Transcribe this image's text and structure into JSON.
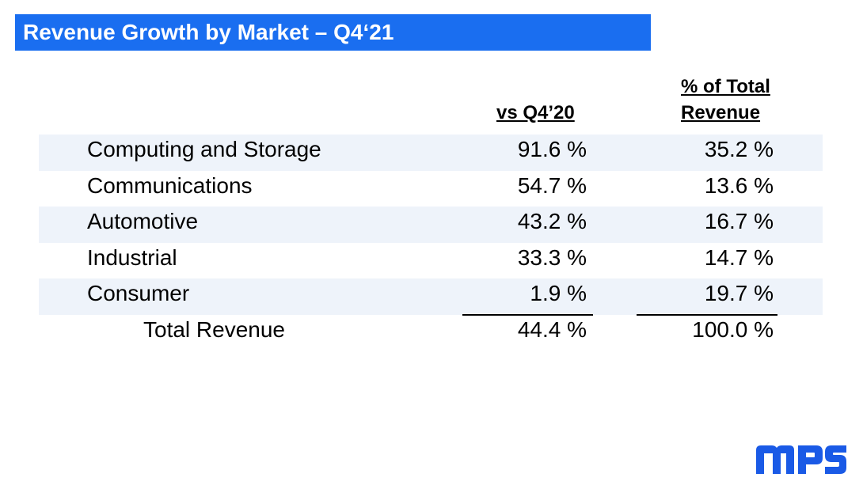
{
  "title": "Revenue Growth by Market –  Q4‘21",
  "columns": {
    "growth_header": "vs Q4’20",
    "share_header_line1": "% of Total",
    "share_header_line2": "Revenue"
  },
  "rows": [
    {
      "market": "Computing and Storage",
      "growth": "91.6 %",
      "share": "35.2 %"
    },
    {
      "market": "Communications",
      "growth": "54.7 %",
      "share": "13.6 %"
    },
    {
      "market": "Automotive",
      "growth": "43.2 %",
      "share": "16.7 %"
    },
    {
      "market": "Industrial",
      "growth": "33.3 %",
      "share": "14.7 %"
    },
    {
      "market": "Consumer",
      "growth": "1.9 %",
      "share": "19.7 %"
    }
  ],
  "total": {
    "label": "Total Revenue",
    "growth": "44.4 %",
    "share": "100.0 %"
  },
  "logo": {
    "text": "MPS",
    "color": "#1a5ae6"
  },
  "colors": {
    "title_bar": "#1a6ef0",
    "row_shade": "#eef3fa"
  }
}
